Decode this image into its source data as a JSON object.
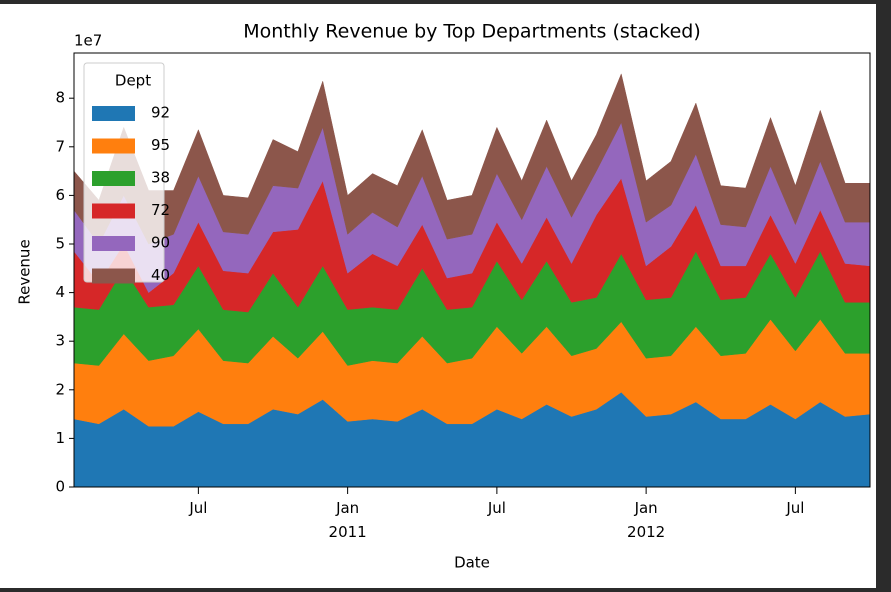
{
  "chart_data": {
    "type": "stacked_area",
    "title": "Monthly Revenue by Top Departments (stacked)",
    "x_label": "Date",
    "y_label": "Revenue",
    "y_scale_label": "1e7",
    "legend_title": "Dept",
    "legend_loc": "upper left",
    "x": [
      "2010-02",
      "2010-03",
      "2010-04",
      "2010-05",
      "2010-06",
      "2010-07",
      "2010-08",
      "2010-09",
      "2010-10",
      "2010-11",
      "2010-12",
      "2011-01",
      "2011-02",
      "2011-03",
      "2011-04",
      "2011-05",
      "2011-06",
      "2011-07",
      "2011-08",
      "2011-09",
      "2011-10",
      "2011-11",
      "2011-12",
      "2012-01",
      "2012-02",
      "2012-03",
      "2012-04",
      "2012-05",
      "2012-06",
      "2012-07",
      "2012-08",
      "2012-09",
      "2012-10"
    ],
    "xlim": [
      "2010-02",
      "2012-10"
    ],
    "xticks": [
      {
        "value": "2010-07",
        "label": "Jul"
      },
      {
        "value": "2011-01",
        "label": "Jan 2011"
      },
      {
        "value": "2011-07",
        "label": "Jul"
      },
      {
        "value": "2012-01",
        "label": "Jan 2012"
      },
      {
        "value": "2012-07",
        "label": "Jul"
      }
    ],
    "ylim": [
      0,
      8.93
    ],
    "yticks": [
      0,
      1,
      2,
      3,
      4,
      5,
      6,
      7,
      8
    ],
    "series": [
      {
        "name": "92",
        "color": "#1f77b4",
        "values": [
          1.4,
          1.3,
          1.6,
          1.25,
          1.25,
          1.55,
          1.3,
          1.3,
          1.6,
          1.5,
          1.8,
          1.35,
          1.4,
          1.35,
          1.6,
          1.3,
          1.3,
          1.6,
          1.4,
          1.7,
          1.45,
          1.6,
          1.95,
          1.45,
          1.5,
          1.75,
          1.4,
          1.4,
          1.7,
          1.4,
          1.75,
          1.45,
          1.5
        ]
      },
      {
        "name": "95",
        "color": "#ff7f0e",
        "values": [
          1.15,
          1.2,
          1.55,
          1.35,
          1.45,
          1.7,
          1.3,
          1.25,
          1.5,
          1.15,
          1.4,
          1.15,
          1.2,
          1.2,
          1.5,
          1.25,
          1.35,
          1.7,
          1.35,
          1.6,
          1.25,
          1.25,
          1.45,
          1.2,
          1.2,
          1.55,
          1.3,
          1.35,
          1.75,
          1.4,
          1.7,
          1.3,
          1.25
        ]
      },
      {
        "name": "38",
        "color": "#2ca02c",
        "values": [
          1.15,
          1.15,
          1.35,
          1.1,
          1.05,
          1.3,
          1.05,
          1.05,
          1.3,
          1.05,
          1.35,
          1.15,
          1.1,
          1.1,
          1.4,
          1.1,
          1.05,
          1.35,
          1.1,
          1.35,
          1.1,
          1.05,
          1.4,
          1.2,
          1.2,
          1.55,
          1.15,
          1.15,
          1.35,
          1.1,
          1.4,
          1.05,
          1.05
        ]
      },
      {
        "name": "72",
        "color": "#d62728",
        "values": [
          1.15,
          0.55,
          0.5,
          0.3,
          0.65,
          0.9,
          0.8,
          0.8,
          0.85,
          1.6,
          1.75,
          0.75,
          1.1,
          0.9,
          0.9,
          0.65,
          0.7,
          0.8,
          0.75,
          0.9,
          0.8,
          1.7,
          1.55,
          0.7,
          1.05,
          0.95,
          0.7,
          0.65,
          0.8,
          0.7,
          0.85,
          0.8,
          0.75
        ]
      },
      {
        "name": "90",
        "color": "#9467bd",
        "values": [
          0.85,
          0.8,
          1.0,
          1.0,
          0.8,
          0.95,
          0.8,
          0.8,
          0.95,
          0.85,
          1.1,
          0.8,
          0.85,
          0.8,
          1.0,
          0.8,
          0.8,
          1.0,
          0.9,
          1.05,
          0.95,
          0.9,
          1.15,
          0.9,
          0.85,
          1.05,
          0.85,
          0.8,
          1.0,
          0.8,
          1.0,
          0.85,
          0.9
        ]
      },
      {
        "name": "40",
        "color": "#8c564b",
        "values": [
          0.8,
          0.9,
          1.4,
          1.1,
          0.9,
          0.95,
          0.75,
          0.75,
          0.95,
          0.75,
          0.95,
          0.8,
          0.8,
          0.85,
          0.95,
          0.8,
          0.8,
          0.95,
          0.8,
          0.95,
          0.75,
          0.75,
          1.0,
          0.85,
          0.9,
          1.05,
          0.8,
          0.8,
          1.0,
          0.8,
          1.05,
          0.8,
          0.8
        ]
      }
    ]
  }
}
